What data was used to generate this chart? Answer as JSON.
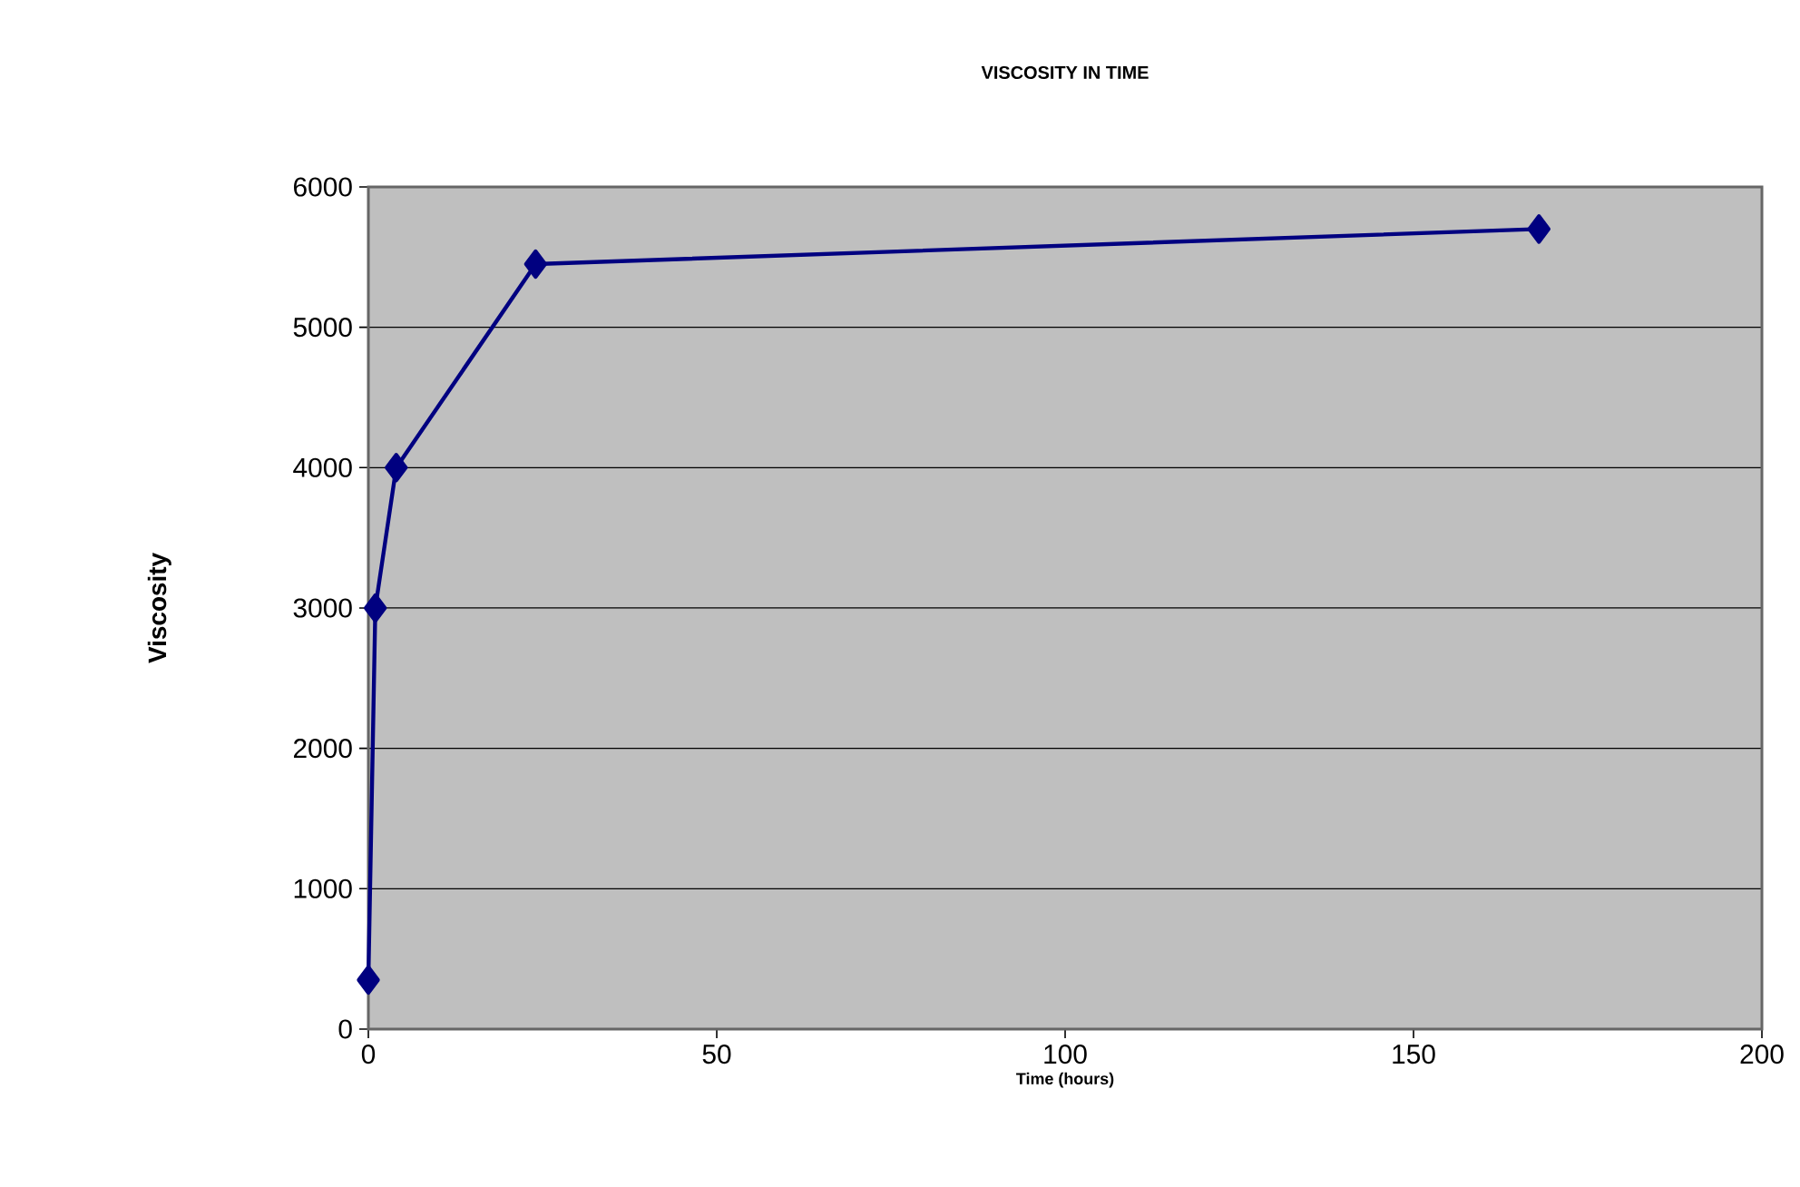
{
  "chart_data": {
    "type": "line",
    "title": "VISCOSITY IN TIME",
    "xlabel": "Time (hours)",
    "ylabel": "Viscosity",
    "x": [
      0,
      1,
      4,
      24,
      168
    ],
    "series": [
      {
        "color": "#000080",
        "values": [
          350,
          3000,
          4000,
          5450,
          5700
        ]
      }
    ],
    "xlim": [
      0,
      200
    ],
    "xticks": [
      0,
      50,
      100,
      150,
      200
    ],
    "ylim": [
      0,
      6000
    ],
    "yticks": [
      0,
      1000,
      2000,
      3000,
      4000,
      5000,
      6000
    ],
    "grid": "y",
    "legend": false,
    "marker": "diamond",
    "line_style": "solid"
  }
}
